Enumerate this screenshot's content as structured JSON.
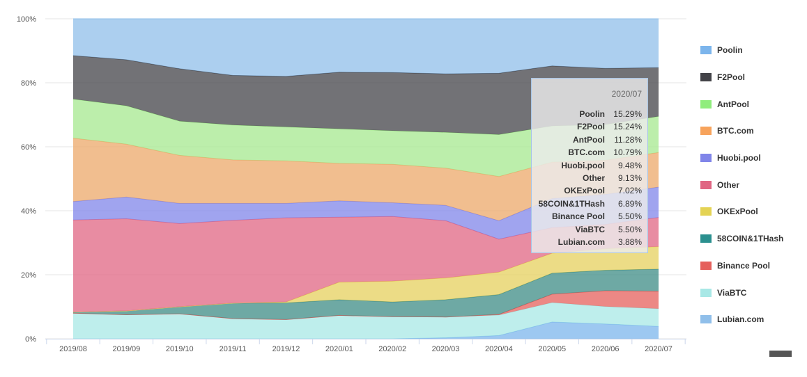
{
  "chart_data": {
    "type": "area",
    "stacked": "percent",
    "x": [
      "2019/08",
      "2019/09",
      "2019/10",
      "2019/11",
      "2019/12",
      "2020/01",
      "2020/02",
      "2020/03",
      "2020/04",
      "2020/05",
      "2020/06",
      "2020/07"
    ],
    "yticks": [
      "0%",
      "20%",
      "40%",
      "60%",
      "80%",
      "100%"
    ],
    "ylim": [
      0,
      100
    ],
    "grid": true,
    "legend_position": "right",
    "series": [
      {
        "name": "Lubian.com",
        "color": "#7cb5ec",
        "values": [
          0.0,
          0.0,
          0.0,
          0.0,
          0.0,
          0.0,
          0.0,
          0.3,
          1.0,
          5.2,
          4.7,
          3.88
        ]
      },
      {
        "name": "ViaBTC",
        "color": "#a8e8e6",
        "values": [
          8.0,
          7.5,
          7.8,
          6.3,
          6.0,
          7.3,
          6.9,
          6.5,
          6.4,
          6.0,
          5.5,
          5.5
        ]
      },
      {
        "name": "Binance Pool",
        "color": "#e5605c",
        "values": [
          0.0,
          0.0,
          0.0,
          0.0,
          0.0,
          0.0,
          0.0,
          0.0,
          0.2,
          2.6,
          5.0,
          5.5
        ]
      },
      {
        "name": "58COIN&1THash",
        "color": "#3d8c86",
        "values": [
          0.3,
          1.2,
          2.2,
          4.8,
          5.2,
          4.9,
          4.6,
          5.4,
          6.2,
          6.5,
          6.5,
          6.89
        ]
      },
      {
        "name": "OKExPool",
        "color": "#e6d05d",
        "values": [
          0.0,
          0.0,
          0.0,
          0.0,
          0.3,
          5.5,
          6.5,
          6.8,
          7.0,
          6.2,
          6.8,
          7.02
        ]
      },
      {
        "name": "Other",
        "color": "#e06683",
        "values": [
          28.8,
          28.8,
          26.0,
          25.9,
          26.3,
          20.3,
          20.2,
          17.9,
          10.3,
          7.9,
          7.7,
          9.13
        ]
      },
      {
        "name": "Huobi.pool",
        "color": "#8085e9",
        "values": [
          5.8,
          6.8,
          6.3,
          5.3,
          4.5,
          5.1,
          4.3,
          4.8,
          5.8,
          9.0,
          9.5,
          9.48
        ]
      },
      {
        "name": "BTC.com",
        "color": "#eca86a",
        "values": [
          19.8,
          16.5,
          15.0,
          13.6,
          13.3,
          11.7,
          12.0,
          11.6,
          13.8,
          11.3,
          10.8,
          10.79
        ]
      },
      {
        "name": "AntPool",
        "color": "#a5e88f",
        "values": [
          12.2,
          12.0,
          10.7,
          10.9,
          10.6,
          10.8,
          10.5,
          11.2,
          13.1,
          11.2,
          11.3,
          11.28
        ]
      },
      {
        "name": "F2Pool",
        "color": "#434348",
        "values": [
          13.6,
          14.4,
          16.4,
          15.5,
          15.8,
          17.7,
          18.2,
          18.3,
          19.2,
          18.6,
          17.8,
          15.24
        ]
      },
      {
        "name": "Poolin",
        "color": "#90bfea",
        "values": [
          11.5,
          12.8,
          15.6,
          17.7,
          18.0,
          16.7,
          16.8,
          17.2,
          17.0,
          14.6,
          15.7,
          15.29
        ]
      }
    ]
  },
  "legend": [
    {
      "label": "Poolin",
      "color": "#7cb5ec"
    },
    {
      "label": "F2Pool",
      "color": "#434348"
    },
    {
      "label": "AntPool",
      "color": "#90ed7d"
    },
    {
      "label": "BTC.com",
      "color": "#f7a35c"
    },
    {
      "label": "Huobi.pool",
      "color": "#8085e9"
    },
    {
      "label": "Other",
      "color": "#e06683"
    },
    {
      "label": "OKExPool",
      "color": "#e4d354"
    },
    {
      "label": "58COIN&1THash",
      "color": "#2b908f"
    },
    {
      "label": "Binance Pool",
      "color": "#e5605c"
    },
    {
      "label": "ViaBTC",
      "color": "#a8e8e6"
    },
    {
      "label": "Lubian.com",
      "color": "#90bfea"
    }
  ],
  "tooltip": {
    "title": "2020/07",
    "rows": [
      {
        "name": "Poolin",
        "value": "15.29%"
      },
      {
        "name": "F2Pool",
        "value": "15.24%"
      },
      {
        "name": "AntPool",
        "value": "11.28%"
      },
      {
        "name": "BTC.com",
        "value": "10.79%"
      },
      {
        "name": "Huobi.pool",
        "value": "9.48%"
      },
      {
        "name": "Other",
        "value": "9.13%"
      },
      {
        "name": "OKExPool",
        "value": "7.02%"
      },
      {
        "name": "58COIN&1THash",
        "value": "6.89%"
      },
      {
        "name": "Binance Pool",
        "value": "5.50%"
      },
      {
        "name": "ViaBTC",
        "value": "5.50%"
      },
      {
        "name": "Lubian.com",
        "value": "3.88%"
      }
    ]
  }
}
